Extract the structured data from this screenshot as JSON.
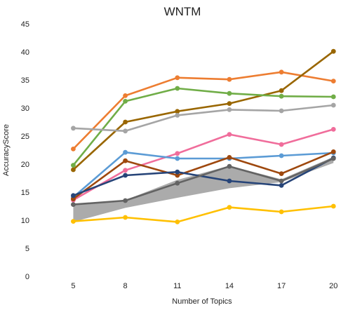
{
  "chart_data": {
    "type": "line",
    "title": "WNTM",
    "xlabel": "Number  of Topics",
    "ylabel": "AccuracyScore",
    "x": [
      5,
      8,
      11,
      14,
      17,
      20
    ],
    "x_ticks": [
      "5",
      "8",
      "11",
      "14",
      "17",
      "20"
    ],
    "ylim": [
      0,
      45
    ],
    "y_ticks": [
      0,
      5,
      10,
      15,
      20,
      25,
      30,
      35,
      40,
      45
    ],
    "grid": false,
    "legend": "none",
    "band": {
      "color": "#a6a6a6",
      "lower": [
        9.7,
        12.2,
        14.0,
        15.7,
        16.8,
        20.2
      ],
      "upper": [
        12.9,
        13.6,
        17.2,
        19.7,
        17.3,
        21.3
      ]
    },
    "series": [
      {
        "color": "#ed7d31",
        "values": [
          22.7,
          32.2,
          35.4,
          35.1,
          36.4,
          34.8
        ]
      },
      {
        "color": "#996600",
        "values": [
          19.0,
          27.5,
          29.4,
          30.8,
          33.1,
          40.1
        ]
      },
      {
        "color": "#70ad47",
        "values": [
          19.8,
          31.2,
          33.5,
          32.6,
          32.1,
          32.0
        ]
      },
      {
        "color": "#a5a5a5",
        "values": [
          26.4,
          25.9,
          28.7,
          29.7,
          29.5,
          30.5
        ]
      },
      {
        "color": "#f06d9b",
        "values": [
          13.6,
          18.9,
          21.9,
          25.3,
          23.5,
          26.2
        ]
      },
      {
        "color": "#5b9bd5",
        "values": [
          14.1,
          22.1,
          21.0,
          21.0,
          21.5,
          22.0
        ]
      },
      {
        "color": "#9e480e",
        "values": [
          13.8,
          20.6,
          18.0,
          21.2,
          18.3,
          22.2
        ]
      },
      {
        "color": "#264478",
        "values": [
          14.4,
          18.0,
          18.6,
          17.0,
          16.2,
          21.1
        ]
      },
      {
        "color": "#636363",
        "values": [
          12.8,
          13.5,
          16.6,
          19.6,
          17.0,
          21.0
        ]
      },
      {
        "color": "#ffc000",
        "values": [
          9.8,
          10.5,
          9.7,
          12.3,
          11.5,
          12.5
        ]
      }
    ]
  }
}
